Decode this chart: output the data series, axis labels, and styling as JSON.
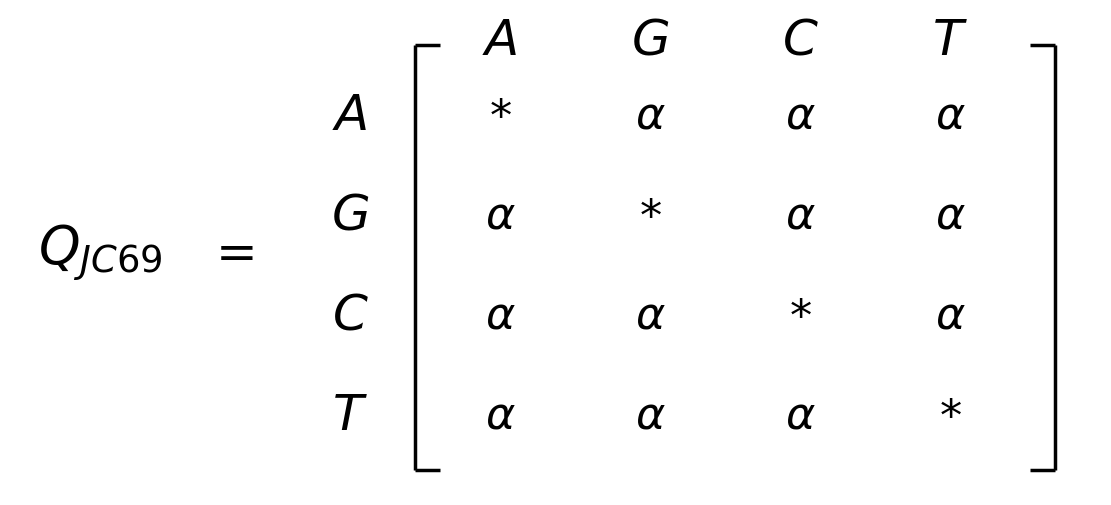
{
  "background_color": "#ffffff",
  "fig_width": 11.11,
  "fig_height": 5.06,
  "dpi": 100,
  "title_label": "$Q_{JC69}$",
  "equals_label": "$=$",
  "col_headers": [
    "$A$",
    "$G$",
    "$C$",
    "$T$"
  ],
  "row_headers": [
    "$A$",
    "$G$",
    "$C$",
    "$T$"
  ],
  "matrix": [
    [
      "$*$",
      "$\\alpha$",
      "$\\alpha$",
      "$\\alpha$"
    ],
    [
      "$\\alpha$",
      "$*$",
      "$\\alpha$",
      "$\\alpha$"
    ],
    [
      "$\\alpha$",
      "$\\alpha$",
      "$*$",
      "$\\alpha$"
    ],
    [
      "$\\alpha$",
      "$\\alpha$",
      "$\\alpha$",
      "$*$"
    ]
  ],
  "text_color": "#000000",
  "fontsize_main": 36,
  "fontsize_matrix": 32,
  "fontsize_label": 38,
  "bracket_linewidth": 2.5
}
